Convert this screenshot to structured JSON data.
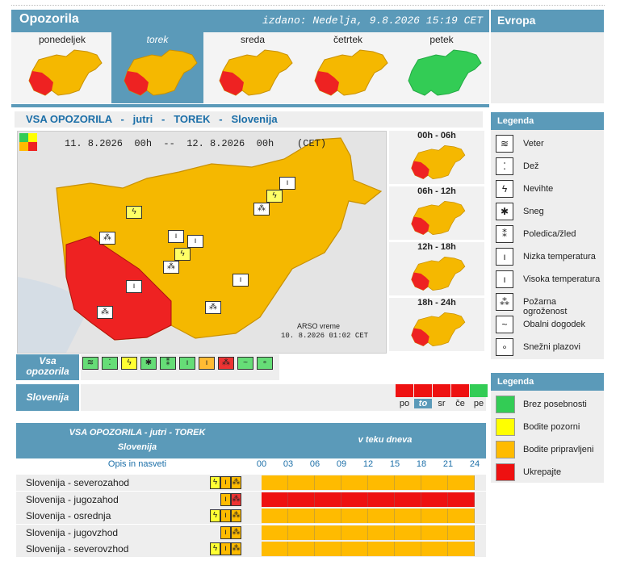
{
  "header": {
    "title": "Opozorila",
    "issued": "izdano: Nedelja, 9.8.2026 15:19 CET",
    "europe": "Evropa"
  },
  "days": [
    {
      "label": "ponedeljek",
      "selected": false
    },
    {
      "label": "torek",
      "selected": true
    },
    {
      "label": "sreda",
      "selected": false
    },
    {
      "label": "četrtek",
      "selected": false
    },
    {
      "label": "petek",
      "selected": false
    }
  ],
  "section_title": "VSA OPOZORILA   -   jutri   -   TOREK   -   Slovenija",
  "map": {
    "period": "11. 8.2026  00h  --  12. 8.2026  00h    (CET)",
    "credit": "ARSO vreme",
    "credit_time": "10. 8.2026  01:02 CET"
  },
  "slots": [
    "00h - 06h",
    "06h - 12h",
    "12h - 18h",
    "18h - 24h"
  ],
  "filter": {
    "label": "Vsa opozorila",
    "icons": [
      "wind-icon",
      "rain-icon",
      "lightning-icon",
      "snow-icon",
      "ice-icon",
      "low-temp-icon",
      "high-temp-icon",
      "fire-icon",
      "coastal-icon",
      "avalanche-icon"
    ]
  },
  "region_bar": {
    "label": "Slovenija",
    "days": [
      "po",
      "to",
      "sr",
      "če",
      "pe"
    ]
  },
  "legend_types": {
    "title": "Legenda",
    "items": [
      {
        "label": "Veter",
        "icon": "wind-icon"
      },
      {
        "label": "Dež",
        "icon": "rain-icon"
      },
      {
        "label": "Nevihte",
        "icon": "lightning-icon"
      },
      {
        "label": "Sneg",
        "icon": "snow-icon"
      },
      {
        "label": "Poledica/žled",
        "icon": "ice-icon"
      },
      {
        "label": "Nizka temperatura",
        "icon": "low-temp-icon"
      },
      {
        "label": "Visoka temperatura",
        "icon": "high-temp-icon"
      },
      {
        "label": "Požarna ogroženost",
        "icon": "fire-icon"
      },
      {
        "label": "Obalni dogodek",
        "icon": "coastal-icon"
      },
      {
        "label": "Snežni plazovi",
        "icon": "avalanche-icon"
      }
    ]
  },
  "legend_levels": {
    "title": "Legenda",
    "items": [
      {
        "label": "Brez posebnosti",
        "color": "#33cc55"
      },
      {
        "label": "Bodite pozorni",
        "color": "#ffff00"
      },
      {
        "label": "Bodite pripravljeni",
        "color": "#ffbb00"
      },
      {
        "label": "Ukrepajte",
        "color": "#ee1111"
      }
    ]
  },
  "colors": {
    "green": "#33cc55",
    "orange": "#f5b800",
    "red": "#ee2222",
    "blue": "#5b9ab9"
  },
  "table": {
    "title1": "VSA OPOZORILA - jutri - TOREK",
    "title2": "Slovenija",
    "during_day": "v teku dneva",
    "desc_label": "Opis in nasveti",
    "hours": [
      "00",
      "03",
      "06",
      "09",
      "12",
      "15",
      "18",
      "21",
      "24"
    ],
    "rows": [
      {
        "label": "Slovenija - severozahod",
        "level": "orange"
      },
      {
        "label": "Slovenija - jugozahod",
        "level": "red"
      },
      {
        "label": "Slovenija - osrednja",
        "level": "orange"
      },
      {
        "label": "Slovenija - jugovzhod",
        "level": "orange"
      },
      {
        "label": "Slovenija - severovzhod",
        "level": "orange"
      }
    ]
  }
}
